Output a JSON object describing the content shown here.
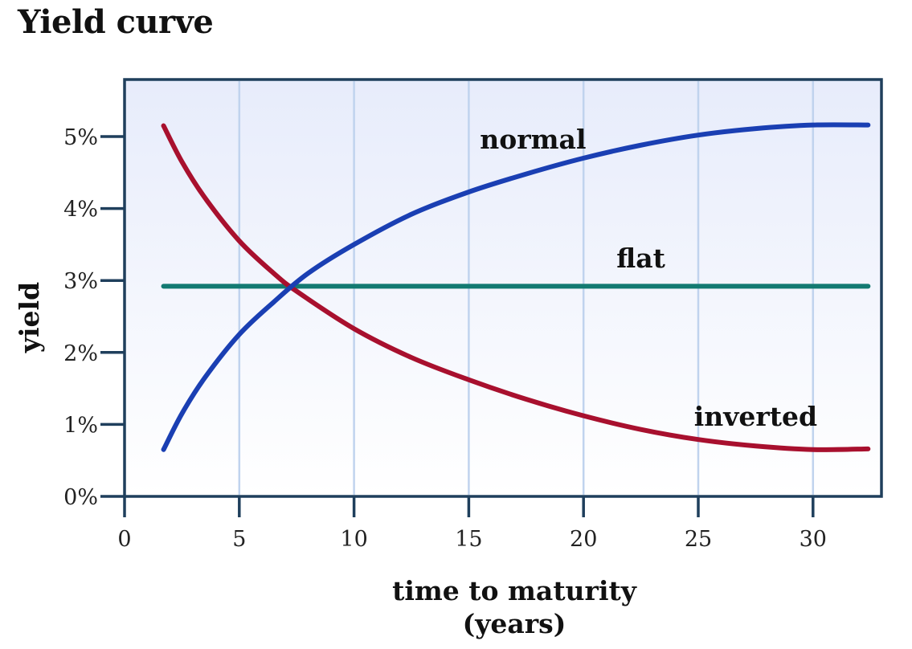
{
  "chart_data": {
    "type": "line",
    "title": "Yield curve",
    "xlabel": [
      "time to maturity",
      "(years)"
    ],
    "ylabel": "yield",
    "xlim": [
      0,
      34
    ],
    "ylim": [
      0,
      5.8
    ],
    "x_ticks": [
      "0",
      "5",
      "10",
      "15",
      "20",
      "25",
      "30"
    ],
    "x_tick_values": [
      0,
      5,
      10,
      15,
      20,
      25,
      30
    ],
    "y_ticks": [
      "0%",
      "1%",
      "2%",
      "3%",
      "4%",
      "5%"
    ],
    "y_tick_values": [
      0,
      1,
      2,
      3,
      4,
      5
    ],
    "grid": "vertical",
    "series": [
      {
        "name": "normal",
        "color": "#1a3fb3",
        "x": [
          1.7,
          2.5,
          3.5,
          5,
          6.5,
          8,
          10,
          12.5,
          15,
          17.5,
          20,
          22.5,
          25,
          27.5,
          30,
          32.4
        ],
        "y": [
          0.65,
          1.15,
          1.65,
          2.25,
          2.7,
          3.1,
          3.5,
          3.92,
          4.23,
          4.48,
          4.7,
          4.88,
          5.02,
          5.11,
          5.16,
          5.16
        ]
      },
      {
        "name": "flat",
        "color": "#137a72",
        "x": [
          1.7,
          32.4
        ],
        "y": [
          2.92,
          2.92
        ]
      },
      {
        "name": "inverted",
        "color": "#a8102e",
        "x": [
          1.7,
          2.5,
          3.5,
          5,
          6.5,
          7.5,
          10,
          12.5,
          15,
          17.5,
          20,
          22.5,
          25,
          27.5,
          30,
          32.4
        ],
        "y": [
          5.15,
          4.65,
          4.15,
          3.55,
          3.1,
          2.85,
          2.33,
          1.93,
          1.62,
          1.35,
          1.12,
          0.93,
          0.79,
          0.7,
          0.65,
          0.66
        ]
      }
    ]
  },
  "colors": {
    "frame": "#1f3f5c",
    "grid": "#c0d3ee",
    "plot_bg_top": "#e7ecfb",
    "plot_bg_bottom": "#ffffff"
  }
}
